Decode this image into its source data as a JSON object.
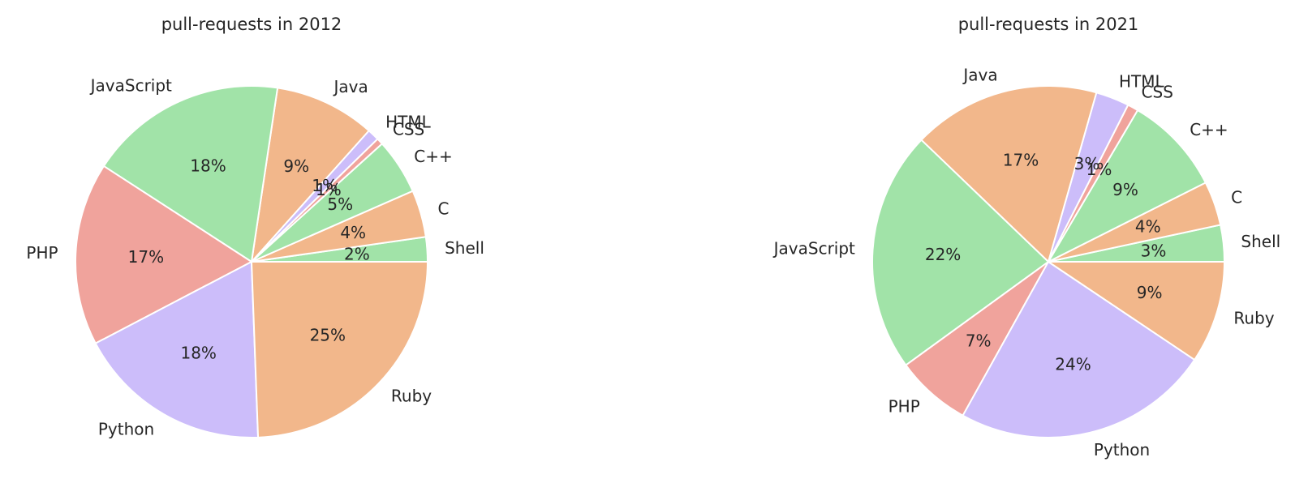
{
  "chart_data": [
    {
      "type": "pie",
      "title": "pull-requests in 2012",
      "categories": [
        "Shell",
        "C",
        "C++",
        "CSS",
        "HTML",
        "Java",
        "JavaScript",
        "PHP",
        "Python",
        "Ruby"
      ],
      "values": [
        2.3,
        4.4,
        5.2,
        0.6,
        1.1,
        9.4,
        18.5,
        17.1,
        18.2,
        24.8
      ],
      "value_labels": [
        "2%",
        "4%",
        "5%",
        "1%",
        "1%",
        "9%",
        "18%",
        "17%",
        "18%",
        "25%"
      ],
      "colors": [
        "#a1e3a8",
        "#f2b78b",
        "#a1e3a8",
        "#f0a39c",
        "#ccbdfa",
        "#f2b78b",
        "#a1e3a8",
        "#f0a39c",
        "#ccbdfa",
        "#f2b78b"
      ],
      "start_angle_deg": 0,
      "direction": "counterclockwise",
      "legend": "none"
    },
    {
      "type": "pie",
      "title": "pull-requests in 2021",
      "categories": [
        "Shell",
        "C",
        "C++",
        "CSS",
        "HTML",
        "Java",
        "JavaScript",
        "PHP",
        "Python",
        "Ruby"
      ],
      "values": [
        3.4,
        4.1,
        9.2,
        1.0,
        3.1,
        17.4,
        22.4,
        7.0,
        23.9,
        9.5
      ],
      "value_labels": [
        "3%",
        "4%",
        "9%",
        "1%",
        "3%",
        "17%",
        "22%",
        "7%",
        "24%",
        "9%"
      ],
      "colors": [
        "#a1e3a8",
        "#f2b78b",
        "#a1e3a8",
        "#f0a39c",
        "#ccbdfa",
        "#f2b78b",
        "#a1e3a8",
        "#f0a39c",
        "#ccbdfa",
        "#f2b78b"
      ],
      "start_angle_deg": 0,
      "direction": "counterclockwise",
      "legend": "none"
    }
  ]
}
